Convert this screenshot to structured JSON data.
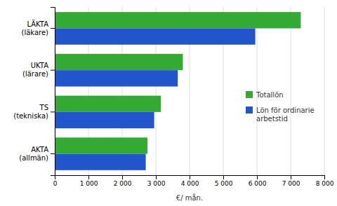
{
  "chart_data": {
    "type": "bar",
    "orientation": "horizontal",
    "categories": [
      "LÄKTA\n(läkare)",
      "UKTA\n(lärare)",
      "TS\n(tekniska)",
      "AKTA\n(allmän)"
    ],
    "series": [
      {
        "name": "Totallön",
        "color": "#33aa33",
        "values": [
          7300,
          3800,
          3150,
          2750
        ]
      },
      {
        "name": "Lön för ordinarie\narbetstid",
        "color": "#2255cc",
        "values": [
          5950,
          3650,
          2950,
          2700
        ]
      }
    ],
    "xlabel": "€/ mån.",
    "xlim": [
      0,
      8000
    ],
    "xticks": [
      0,
      {
        "value": 1000,
        "label": "1 000"
      },
      {
        "value": 2000,
        "label": "2 000"
      },
      {
        "value": 3000,
        "label": "3 000"
      },
      {
        "value": 4000,
        "label": "4 000"
      },
      {
        "value": 5000,
        "label": "5 000"
      },
      {
        "value": 6000,
        "label": "6 000"
      },
      {
        "value": 7000,
        "label": "7 000"
      },
      {
        "value": 8000,
        "label": "8 000"
      }
    ],
    "grid": true,
    "legend": "right"
  }
}
